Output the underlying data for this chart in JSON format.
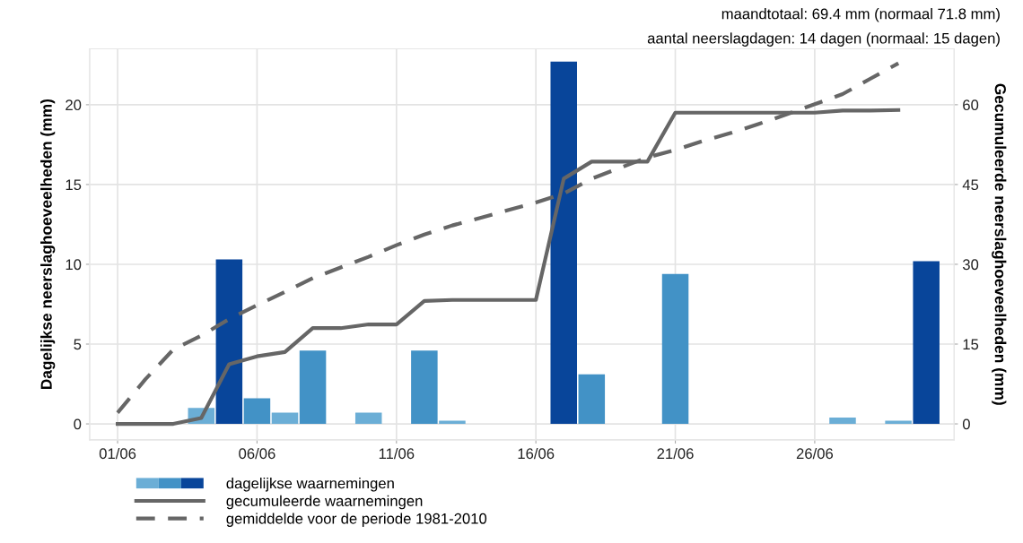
{
  "chart_data": {
    "type": "bar",
    "ylabel": "Dagelijkse neerslaghoeveelheden (mm)",
    "y2label": "Gecumuleerde neerslaghoeveelheden (mm)",
    "annotations": [
      "maandtotaal: 69.4 mm (normaal 71.8 mm)",
      "aantal neerslagdagen: 14 dagen (normaal: 15 dagen)"
    ],
    "categories": [
      "01/06",
      null,
      null,
      null,
      null,
      "06/06",
      null,
      null,
      null,
      null,
      "11/06",
      null,
      null,
      null,
      null,
      "16/06",
      null,
      null,
      null,
      null,
      "21/06",
      null,
      null,
      null,
      null,
      "26/06",
      null,
      null,
      null,
      null
    ],
    "ylim": [
      -1,
      23.5
    ],
    "yticks": [
      0,
      5,
      10,
      15,
      20
    ],
    "y2lim": [
      -3,
      70.5
    ],
    "y2ticks": [
      0,
      15,
      30,
      45,
      60
    ],
    "grid": true,
    "legend": "bottom left",
    "series": [
      {
        "name": "dagelijkse waarnemingen",
        "values": [
          0,
          0,
          0,
          1.0,
          10.3,
          1.6,
          0.7,
          4.6,
          0,
          0.7,
          0,
          4.6,
          0.2,
          0,
          0,
          0,
          22.7,
          3.1,
          0,
          0,
          9.4,
          0,
          0,
          0,
          0,
          0,
          0.4,
          0,
          0.2,
          10.2
        ],
        "colors": [
          "#6baed6",
          "#6baed6",
          "#6baed6",
          "#6baed6",
          "#08459a",
          "#4292c6",
          "#6baed6",
          "#4292c6",
          "#6baed6",
          "#6baed6",
          "#6baed6",
          "#4292c6",
          "#6baed6",
          "#6baed6",
          "#6baed6",
          "#6baed6",
          "#08459a",
          "#4292c6",
          "#6baed6",
          "#6baed6",
          "#4292c6",
          "#6baed6",
          "#6baed6",
          "#6baed6",
          "#6baed6",
          "#6baed6",
          "#6baed6",
          "#6baed6",
          "#6baed6",
          "#08459a"
        ]
      },
      {
        "name": "gecumuleerde waarnemingen",
        "type": "line",
        "axis": "y2",
        "color": "#666666",
        "line_style": "solid",
        "values": [
          0,
          0,
          0,
          1.1,
          11.2,
          12.7,
          13.5,
          18.0,
          18.0,
          18.7,
          18.7,
          23.1,
          23.3,
          23.3,
          23.3,
          23.3,
          46.1,
          49.3,
          49.3,
          49.3,
          58.5,
          58.5,
          58.5,
          58.5,
          58.5,
          58.5,
          58.9,
          58.9,
          59.0,
          null
        ]
      },
      {
        "name": "gemiddelde voor de periode 1981-2010",
        "type": "line",
        "axis": "y2",
        "color": "#666666",
        "line_style": "dashed",
        "values": [
          2.1,
          8.4,
          14.0,
          16.6,
          19.7,
          22.3,
          24.8,
          27.4,
          29.4,
          31.4,
          33.6,
          35.6,
          37.3,
          38.7,
          40.2,
          41.6,
          43.3,
          46.1,
          48.1,
          50.1,
          51.5,
          53.2,
          54.7,
          56.4,
          58.2,
          60.1,
          62.0,
          64.9,
          67.8,
          null
        ]
      }
    ]
  }
}
